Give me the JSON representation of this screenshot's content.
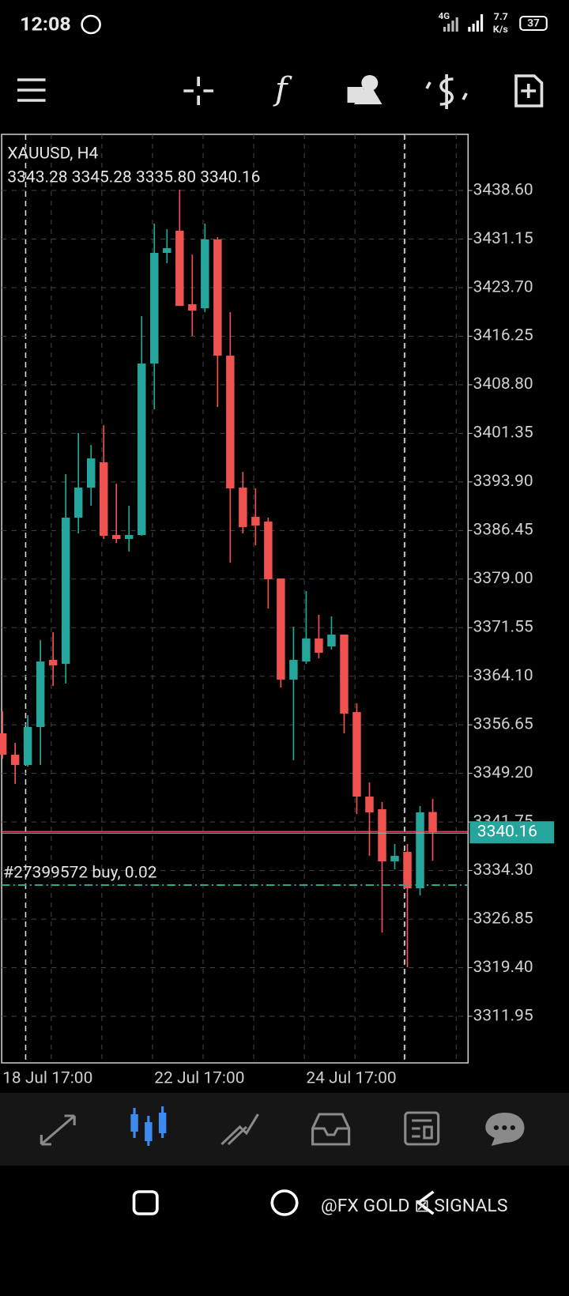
{
  "status_bar": {
    "time": "12:08",
    "network": "4G",
    "speed": "7.7",
    "speed_unit": "K/s",
    "battery": "37"
  },
  "chart_data": {
    "type": "candlestick",
    "symbol": "XAUUSD, H4",
    "ohlc_text": "3343.28 3345.28 3335.80 3340.16",
    "categories": [
      "18 Jul 17:00",
      null,
      null,
      null,
      null,
      null,
      null,
      null,
      null,
      null,
      null,
      null,
      "22 Jul 17:00",
      null,
      null,
      null,
      null,
      null,
      null,
      null,
      null,
      null,
      null,
      null,
      "24 Jul 17:00",
      null,
      null,
      null,
      null,
      null,
      null,
      null,
      null,
      null,
      null
    ],
    "open": [
      3355.34,
      3352.06,
      3350.49,
      3356.31,
      3366.61,
      3366.0,
      3388.42,
      3393.03,
      3396.91,
      3385.76,
      3385.15,
      3385.76,
      3412.06,
      3429.03,
      3432.42,
      3421.15,
      3420.54,
      3431.09,
      3413.27,
      3393.03,
      3388.54,
      3387.82,
      3379.09,
      3363.58,
      3366.36,
      3369.88,
      3368.67,
      3370.49,
      3358.61,
      3345.64,
      3343.7,
      3335.7,
      3337.16,
      3331.58,
      3343.28
    ],
    "high": [
      3358.73,
      3353.88,
      3358.12,
      3369.64,
      3370.85,
      3395.09,
      3401.39,
      3399.57,
      3402.6,
      3393.63,
      3390.24,
      3419.33,
      3433.51,
      3432.66,
      3438.72,
      3428.78,
      3433.51,
      3431.45,
      3419.94,
      3395.45,
      3392.91,
      3388.42,
      3379.09,
      3371.7,
      3377.15,
      3373.52,
      3373.27,
      3370.49,
      3359.94,
      3347.82,
      3344.79,
      3338.37,
      3338.37,
      3344.19,
      3345.28
    ],
    "low": [
      3351.46,
      3347.58,
      3350.25,
      3350.49,
      3362.61,
      3362.97,
      3386.0,
      3390.24,
      3385.15,
      3384.54,
      3383.21,
      3385.64,
      3405.03,
      3427.45,
      3420.9,
      3416.3,
      3419.94,
      3405.39,
      3381.51,
      3386.0,
      3384.18,
      3374.49,
      3362.37,
      3351.21,
      3366.0,
      3366.85,
      3368.18,
      3355.34,
      3342.97,
      3336.55,
      3324.79,
      3334.49,
      3319.46,
      3330.49,
      3335.8
    ],
    "close": [
      3352.06,
      3350.49,
      3356.31,
      3366.36,
      3365.76,
      3388.42,
      3393.03,
      3397.51,
      3385.64,
      3385.15,
      3385.76,
      3412.06,
      3429.03,
      3429.75,
      3420.9,
      3420.18,
      3431.09,
      3413.27,
      3392.91,
      3386.97,
      3387.21,
      3378.97,
      3363.58,
      3366.61,
      3369.88,
      3367.7,
      3370.49,
      3358.37,
      3345.64,
      3343.22,
      3335.7,
      3336.55,
      3331.58,
      3343.22,
      3340.16
    ],
    "up_color": "#26a69a",
    "down_color": "#ef5350",
    "ylim": [
      3304.8,
      3447.21
    ],
    "yticks": [
      {
        "value": 3438.6,
        "label": "3438.60"
      },
      3431.15,
      {
        "value": 3423.7,
        "label": "3423.70"
      },
      3416.25,
      {
        "value": 3408.8,
        "label": "3408.80"
      },
      3401.35,
      {
        "value": 3393.9,
        "label": "3393.90"
      },
      3386.45,
      {
        "value": 3379.0,
        "label": "3379.00"
      },
      3371.55,
      {
        "value": 3364.1,
        "label": "3364.10"
      },
      3356.65,
      {
        "value": 3349.2,
        "label": "3349.20"
      },
      3341.75,
      {
        "value": 3334.3,
        "label": "3334.30"
      },
      3326.85,
      {
        "value": 3319.4,
        "label": "3319.40"
      },
      3311.95
    ],
    "grid": true,
    "current_price": 3340.16,
    "order": {
      "label": "#27399572 buy, 0.02",
      "price": 3332.07
    }
  },
  "watermark": "@FX GOLD ⊠ SIGNALS"
}
